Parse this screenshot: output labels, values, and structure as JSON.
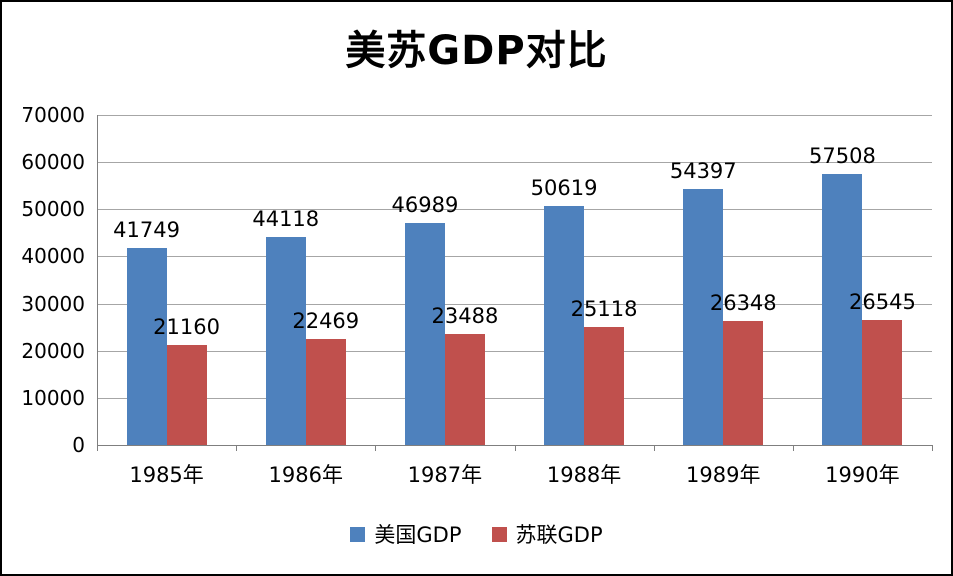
{
  "chart_data": {
    "type": "bar",
    "title": "美苏GDP对比",
    "categories": [
      "1985年",
      "1986年",
      "1987年",
      "1988年",
      "1989年",
      "1990年"
    ],
    "series": [
      {
        "name": "美国GDP",
        "color": "#4e81bd",
        "values": [
          41749,
          44118,
          46989,
          50619,
          54397,
          57508
        ]
      },
      {
        "name": "苏联GDP",
        "color": "#c0504d",
        "values": [
          21160,
          22469,
          23488,
          25118,
          26348,
          26545
        ]
      }
    ],
    "ylim": [
      0,
      70000
    ],
    "yticks": [
      0,
      10000,
      20000,
      30000,
      40000,
      50000,
      60000,
      70000
    ],
    "grid": true,
    "data_labels": true,
    "legend_position": "bottom",
    "colors": {
      "gridline": "#a6a6a6",
      "axis": "#7f7f7f",
      "text": "#000000",
      "background": "#ffffff"
    }
  }
}
